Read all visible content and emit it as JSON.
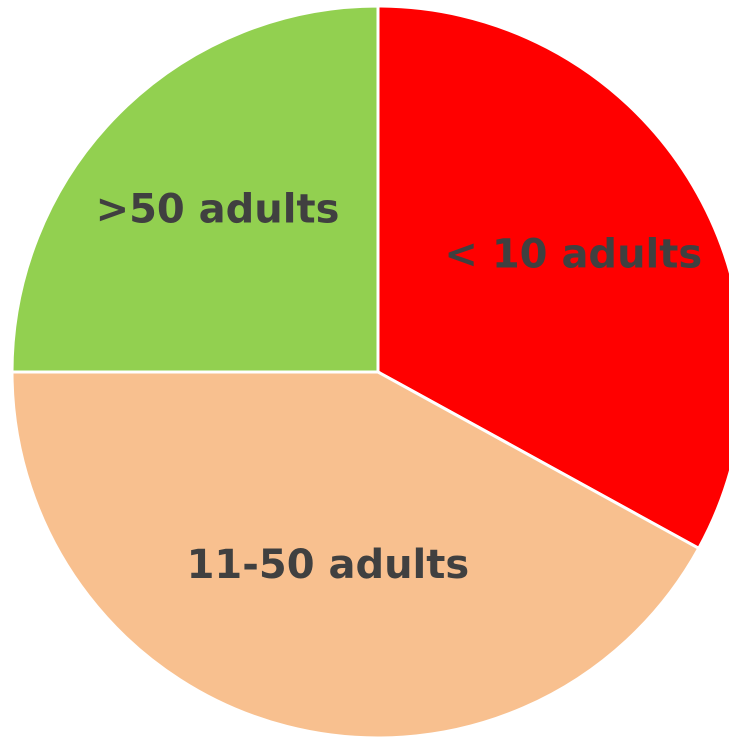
{
  "chart_data": {
    "type": "pie",
    "title": "",
    "start_angle_deg": 0,
    "direction": "clockwise",
    "slices": [
      {
        "label": "< 10 adults",
        "value": 33,
        "color": "#FF0000"
      },
      {
        "label": "11-50 adults",
        "value": 42,
        "color": "#F8C08F"
      },
      {
        "label": ">50 adults",
        "value": 25,
        "color": "#92D050"
      }
    ]
  }
}
